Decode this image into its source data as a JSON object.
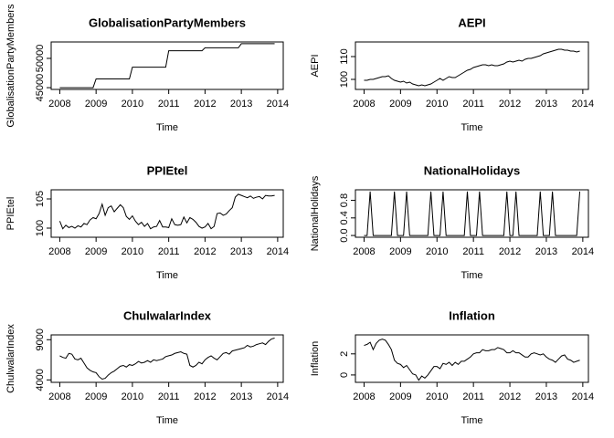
{
  "chart_data": [
    {
      "type": "line",
      "title": "GlobalisationPartyMembers",
      "x_label": "Time",
      "y_label": "GlobalisationPartyMembers",
      "color": "#000000",
      "x": [
        2008,
        2008.083,
        2008.167,
        2008.25,
        2008.333,
        2008.417,
        2008.5,
        2008.583,
        2008.667,
        2008.75,
        2008.833,
        2008.917,
        2009,
        2009.083,
        2009.167,
        2009.25,
        2009.333,
        2009.417,
        2009.5,
        2009.583,
        2009.667,
        2009.75,
        2009.833,
        2009.917,
        2010,
        2010.083,
        2010.167,
        2010.25,
        2010.333,
        2010.417,
        2010.5,
        2010.583,
        2010.667,
        2010.75,
        2010.833,
        2010.917,
        2011,
        2011.083,
        2011.167,
        2011.25,
        2011.333,
        2011.417,
        2011.5,
        2011.583,
        2011.667,
        2011.75,
        2011.833,
        2011.917,
        2012,
        2012.083,
        2012.167,
        2012.25,
        2012.333,
        2012.417,
        2012.5,
        2012.583,
        2012.667,
        2012.75,
        2012.833,
        2012.917,
        2013,
        2013.083,
        2013.167,
        2013.25,
        2013.333,
        2013.417,
        2013.5,
        2013.583,
        2013.667,
        2013.75,
        2013.833,
        2013.917
      ],
      "values": [
        45000,
        45000,
        45000,
        45000,
        45000,
        45000,
        45000,
        45000,
        45000,
        45000,
        45000,
        45000,
        46500,
        46500,
        46500,
        46500,
        46500,
        46500,
        46500,
        46500,
        46500,
        46500,
        46500,
        46500,
        48500,
        48500,
        48500,
        48500,
        48500,
        48500,
        48500,
        48500,
        48500,
        48500,
        48500,
        48500,
        51300,
        51300,
        51300,
        51300,
        51300,
        51300,
        51300,
        51300,
        51300,
        51300,
        51300,
        51300,
        51800,
        51800,
        51800,
        51800,
        51800,
        51800,
        51800,
        51800,
        51800,
        51800,
        51800,
        51800,
        52500,
        52500,
        52500,
        52500,
        52500,
        52500,
        52500,
        52500,
        52500,
        52500,
        52500,
        52500
      ],
      "xlim": [
        2007.763,
        2014.154
      ],
      "xticks": [
        2008,
        2009,
        2010,
        2011,
        2012,
        2013,
        2014
      ],
      "ylim": [
        44700,
        52800
      ],
      "yticks": [
        45000,
        50000
      ]
    },
    {
      "type": "line",
      "title": "AEPI",
      "x_label": "Time",
      "y_label": "AEPI",
      "color": "#000000",
      "x": [
        2008,
        2008.083,
        2008.167,
        2008.25,
        2008.333,
        2008.417,
        2008.5,
        2008.583,
        2008.667,
        2008.75,
        2008.833,
        2008.917,
        2009,
        2009.083,
        2009.167,
        2009.25,
        2009.333,
        2009.417,
        2009.5,
        2009.583,
        2009.667,
        2009.75,
        2009.833,
        2009.917,
        2010,
        2010.083,
        2010.167,
        2010.25,
        2010.333,
        2010.417,
        2010.5,
        2010.583,
        2010.667,
        2010.75,
        2010.833,
        2010.917,
        2011,
        2011.083,
        2011.167,
        2011.25,
        2011.333,
        2011.417,
        2011.5,
        2011.583,
        2011.667,
        2011.75,
        2011.833,
        2011.917,
        2012,
        2012.083,
        2012.167,
        2012.25,
        2012.333,
        2012.417,
        2012.5,
        2012.583,
        2012.667,
        2012.75,
        2012.833,
        2012.917,
        2013,
        2013.083,
        2013.167,
        2013.25,
        2013.333,
        2013.417,
        2013.5,
        2013.583,
        2013.667,
        2013.75,
        2013.833,
        2013.917
      ],
      "values": [
        99.6,
        99.6,
        100,
        100,
        100.4,
        100.8,
        101.2,
        101.2,
        101.6,
        100.4,
        99.6,
        99.2,
        98.8,
        99.2,
        98.4,
        98.8,
        98,
        97.6,
        97.2,
        97.6,
        97.2,
        97.6,
        98,
        98.8,
        99.6,
        100.4,
        99.6,
        100.4,
        101.2,
        100.8,
        100.8,
        101.6,
        102.4,
        103.2,
        104,
        104.4,
        105.2,
        105.6,
        106,
        106.4,
        106.4,
        106,
        106.4,
        106,
        106,
        106.4,
        106.8,
        107.6,
        108,
        107.6,
        108,
        108.4,
        108,
        108.8,
        109.2,
        109.2,
        109.6,
        110,
        110.4,
        111.2,
        111.6,
        112,
        112.4,
        112.8,
        113.2,
        113.2,
        112.8,
        112.8,
        112.4,
        112.4,
        112,
        112.4
      ],
      "xlim": [
        2007.763,
        2014.154
      ],
      "xticks": [
        2008,
        2009,
        2010,
        2011,
        2012,
        2013,
        2014
      ],
      "ylim": [
        95.6,
        116.4
      ],
      "yticks": [
        100,
        110
      ]
    },
    {
      "type": "line",
      "title": "PPIEtel",
      "x_label": "Time",
      "y_label": "PPIEtel",
      "color": "#000000",
      "x": [
        2008,
        2008.083,
        2008.167,
        2008.25,
        2008.333,
        2008.417,
        2008.5,
        2008.583,
        2008.667,
        2008.75,
        2008.833,
        2008.917,
        2009,
        2009.083,
        2009.167,
        2009.25,
        2009.333,
        2009.417,
        2009.5,
        2009.583,
        2009.667,
        2009.75,
        2009.833,
        2009.917,
        2010,
        2010.083,
        2010.167,
        2010.25,
        2010.333,
        2010.417,
        2010.5,
        2010.583,
        2010.667,
        2010.75,
        2010.833,
        2010.917,
        2011,
        2011.083,
        2011.167,
        2011.25,
        2011.333,
        2011.417,
        2011.5,
        2011.583,
        2011.667,
        2011.75,
        2011.833,
        2011.917,
        2012,
        2012.083,
        2012.167,
        2012.25,
        2012.333,
        2012.417,
        2012.5,
        2012.583,
        2012.667,
        2012.75,
        2012.833,
        2012.917,
        2013,
        2013.083,
        2013.167,
        2013.25,
        2013.333,
        2013.417,
        2013.5,
        2013.583,
        2013.667,
        2013.75,
        2013.833,
        2013.917
      ],
      "values": [
        101.2,
        99.9,
        100.5,
        100.1,
        100.3,
        100,
        100.4,
        100.2,
        100.8,
        100.6,
        101.4,
        101.8,
        101.6,
        102.5,
        104.1,
        102.2,
        103.5,
        103.8,
        102.8,
        103.4,
        104,
        103.5,
        102,
        101.5,
        102.1,
        101.2,
        100.6,
        101,
        100.3,
        100.8,
        99.9,
        100.2,
        100.3,
        101.3,
        100.2,
        100.2,
        100.1,
        101.6,
        100.6,
        100.5,
        100.6,
        101.9,
        100.9,
        101.8,
        101.5,
        101,
        100.3,
        100,
        100.2,
        100.8,
        99.9,
        100.3,
        102.5,
        102.6,
        102.2,
        102.4,
        103,
        103.5,
        105.3,
        105.8,
        105.6,
        105.4,
        105.2,
        105.5,
        105.1,
        105.3,
        105.4,
        105,
        105.6,
        105.5,
        105.5,
        105.6
      ],
      "xlim": [
        2007.763,
        2014.154
      ],
      "xticks": [
        2008,
        2009,
        2010,
        2011,
        2012,
        2013,
        2014
      ],
      "ylim": [
        98.44,
        106.56
      ],
      "yticks": [
        100,
        105
      ]
    },
    {
      "type": "line",
      "title": "NationalHolidays",
      "x_label": "Time",
      "y_label": "NationalHolidays",
      "color": "#000000",
      "x": [
        2008,
        2008.083,
        2008.167,
        2008.25,
        2008.333,
        2008.417,
        2008.5,
        2008.583,
        2008.667,
        2008.75,
        2008.833,
        2008.917,
        2009,
        2009.083,
        2009.167,
        2009.25,
        2009.333,
        2009.417,
        2009.5,
        2009.583,
        2009.667,
        2009.75,
        2009.833,
        2009.917,
        2010,
        2010.083,
        2010.167,
        2010.25,
        2010.333,
        2010.417,
        2010.5,
        2010.583,
        2010.667,
        2010.75,
        2010.833,
        2010.917,
        2011,
        2011.083,
        2011.167,
        2011.25,
        2011.333,
        2011.417,
        2011.5,
        2011.583,
        2011.667,
        2011.75,
        2011.833,
        2011.917,
        2012,
        2012.083,
        2012.167,
        2012.25,
        2012.333,
        2012.417,
        2012.5,
        2012.583,
        2012.667,
        2012.75,
        2012.833,
        2012.917,
        2013,
        2013.083,
        2013.167,
        2013.25,
        2013.333,
        2013.417,
        2013.5,
        2013.583,
        2013.667,
        2013.75,
        2013.833,
        2013.917
      ],
      "values": [
        0,
        0,
        1,
        0,
        0,
        0,
        0,
        0,
        0,
        0,
        1,
        0,
        0,
        0,
        1,
        0,
        0,
        0,
        0,
        0,
        0,
        0,
        1,
        0,
        0,
        0,
        1,
        0,
        0,
        0,
        0,
        0,
        0,
        0,
        1,
        0,
        0,
        0,
        1,
        0,
        0,
        0,
        0,
        0,
        0,
        0,
        0,
        1,
        0,
        0,
        1,
        0,
        0,
        0,
        0,
        0,
        0,
        0,
        1,
        0,
        0,
        0,
        1,
        0,
        0,
        0,
        0,
        0,
        0,
        0,
        0,
        1
      ],
      "xlim": [
        2007.763,
        2014.154
      ],
      "xticks": [
        2008,
        2009,
        2010,
        2011,
        2012,
        2013,
        2014
      ],
      "ylim": [
        -0.04,
        1.04
      ],
      "yticks": [
        {
          "value": 0,
          "label": "0.0"
        },
        0.4,
        0.8
      ]
    },
    {
      "type": "line",
      "title": "ChulwalarIndex",
      "x_label": "Time",
      "y_label": "ChulwalarIndex",
      "color": "#000000",
      "x": [
        2008,
        2008.083,
        2008.167,
        2008.25,
        2008.333,
        2008.417,
        2008.5,
        2008.583,
        2008.667,
        2008.75,
        2008.833,
        2008.917,
        2009,
        2009.083,
        2009.167,
        2009.25,
        2009.333,
        2009.417,
        2009.5,
        2009.583,
        2009.667,
        2009.75,
        2009.833,
        2009.917,
        2010,
        2010.083,
        2010.167,
        2010.25,
        2010.333,
        2010.417,
        2010.5,
        2010.583,
        2010.667,
        2010.75,
        2010.833,
        2010.917,
        2011,
        2011.083,
        2011.167,
        2011.25,
        2011.333,
        2011.417,
        2011.5,
        2011.583,
        2011.667,
        2011.75,
        2011.833,
        2011.917,
        2012,
        2012.083,
        2012.167,
        2012.25,
        2012.333,
        2012.417,
        2012.5,
        2012.583,
        2012.667,
        2012.75,
        2012.833,
        2012.917,
        2013,
        2013.083,
        2013.167,
        2013.25,
        2013.333,
        2013.417,
        2013.5,
        2013.583,
        2013.667,
        2013.75,
        2013.833,
        2013.917
      ],
      "values": [
        7000,
        6800,
        6700,
        7300,
        7200,
        6600,
        6500,
        6700,
        6100,
        5500,
        5200,
        5000,
        4900,
        4400,
        4100,
        4200,
        4600,
        4900,
        5100,
        5400,
        5700,
        5800,
        5600,
        5900,
        5800,
        6000,
        6300,
        6100,
        6200,
        6400,
        6200,
        6500,
        6400,
        6500,
        6600,
        6900,
        7000,
        7100,
        7300,
        7400,
        7500,
        7300,
        7200,
        5800,
        5600,
        5800,
        6200,
        6000,
        6500,
        6800,
        7000,
        6700,
        6500,
        6900,
        7300,
        7400,
        7200,
        7600,
        7700,
        7800,
        7900,
        8000,
        8300,
        8100,
        8200,
        8400,
        8500,
        8600,
        8400,
        8800,
        9100,
        9200
      ],
      "xlim": [
        2007.763,
        2014.154
      ],
      "xticks": [
        2008,
        2009,
        2010,
        2011,
        2012,
        2013,
        2014
      ],
      "ylim": [
        3700,
        9600
      ],
      "yticks": [
        4000,
        9000
      ]
    },
    {
      "type": "line",
      "title": "Inflation",
      "x_label": "Time",
      "y_label": "Inflation",
      "color": "#000000",
      "x": [
        2008,
        2008.083,
        2008.167,
        2008.25,
        2008.333,
        2008.417,
        2008.5,
        2008.583,
        2008.667,
        2008.75,
        2008.833,
        2008.917,
        2009,
        2009.083,
        2009.167,
        2009.25,
        2009.333,
        2009.417,
        2009.5,
        2009.583,
        2009.667,
        2009.75,
        2009.833,
        2009.917,
        2010,
        2010.083,
        2010.167,
        2010.25,
        2010.333,
        2010.417,
        2010.5,
        2010.583,
        2010.667,
        2010.75,
        2010.833,
        2010.917,
        2011,
        2011.083,
        2011.167,
        2011.25,
        2011.333,
        2011.417,
        2011.5,
        2011.583,
        2011.667,
        2011.75,
        2011.833,
        2011.917,
        2012,
        2012.083,
        2012.167,
        2012.25,
        2012.333,
        2012.417,
        2012.5,
        2012.583,
        2012.667,
        2012.75,
        2012.833,
        2012.917,
        2013,
        2013.083,
        2013.167,
        2013.25,
        2013.333,
        2013.417,
        2013.5,
        2013.583,
        2013.667,
        2013.75,
        2013.833,
        2013.917
      ],
      "values": [
        2.8,
        2.9,
        3.1,
        2.4,
        3.0,
        3.3,
        3.4,
        3.3,
        2.9,
        2.4,
        1.4,
        1.1,
        1.0,
        0.7,
        0.9,
        0.5,
        0.1,
        0.0,
        -0.5,
        -0.1,
        -0.3,
        0.0,
        0.4,
        0.8,
        0.8,
        0.6,
        1.1,
        1.0,
        1.2,
        0.9,
        1.2,
        1.0,
        1.3,
        1.3,
        1.5,
        1.7,
        2.0,
        2.1,
        2.1,
        2.4,
        2.3,
        2.3,
        2.4,
        2.4,
        2.6,
        2.5,
        2.4,
        2.1,
        2.1,
        2.3,
        2.1,
        2.1,
        1.9,
        1.7,
        1.7,
        2.0,
        2.1,
        2.0,
        1.9,
        2.0,
        1.7,
        1.5,
        1.4,
        1.2,
        1.5,
        1.8,
        1.9,
        1.5,
        1.4,
        1.2,
        1.3,
        1.4
      ],
      "xlim": [
        2007.763,
        2014.154
      ],
      "xticks": [
        2008,
        2009,
        2010,
        2011,
        2012,
        2013,
        2014
      ],
      "ylim": [
        -0.7,
        3.8
      ],
      "yticks": [
        0,
        2
      ]
    }
  ]
}
